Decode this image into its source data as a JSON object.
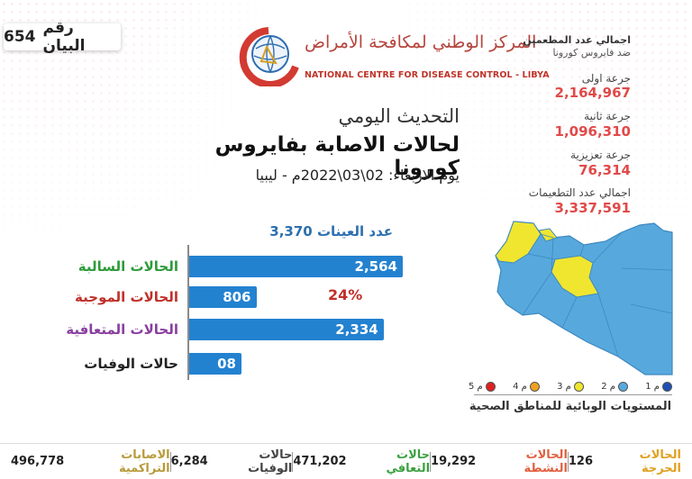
{
  "statement": {
    "label": "رقم البيان",
    "number": "654"
  },
  "logo": {
    "arabic": "المركز الوطني لمكافحة الأمراض",
    "english": "NATIONAL CENTRE FOR DISEASE CONTROL - LIBYA"
  },
  "header": {
    "line1": "التحديث اليومي",
    "line2": "لحالات الاصابة بفايروس كورونا",
    "line3": "يوم الاربعاء: 02\\03\\2022م - ليبيا"
  },
  "vaccination": {
    "title_line1": "اجمالي عدد المطعمين",
    "title_line2": "ضد فايروس كورونا",
    "dose1_label": "جرعة اولى",
    "dose1_value": "2,164,967",
    "dose2_label": "جرعة ثانية",
    "dose2_value": "1,096,310",
    "booster_label": "جرعة تعزيزية",
    "booster_value": "76,314",
    "total_label": "اجمالي عدد التطعيمات",
    "total_value": "3,337,591"
  },
  "chart_data": {
    "type": "bar",
    "title": "عدد العينات 3,370",
    "categories": [
      "الحالات السالبة",
      "الحالات الموجبة",
      "الحالات المتعافية",
      "حالات الوفيات"
    ],
    "values": [
      2564,
      806,
      2334,
      8
    ],
    "value_labels": [
      "2,564",
      "806",
      "2,334",
      "08"
    ],
    "annotation": "24%",
    "colors": {
      "bar": "#2382d0",
      "cat0": "#2e9b3a",
      "cat1": "#c0302a",
      "cat2": "#8a3fa0",
      "cat3": "#222222"
    }
  },
  "legend": {
    "title": "المستويات الوبائية للمناطق الصحية",
    "items": [
      {
        "label": "م 1",
        "color": "#1f4fb4"
      },
      {
        "label": "م 2",
        "color": "#57a9dd"
      },
      {
        "label": "م 3",
        "color": "#f0e630"
      },
      {
        "label": "م 4",
        "color": "#f0a020"
      },
      {
        "label": "م 5",
        "color": "#e02020"
      }
    ]
  },
  "footer": [
    {
      "label": "الحالات الحرجة",
      "value": "126",
      "color": "#e0a020"
    },
    {
      "label": "الحالات النشطة",
      "value": "19,292",
      "color": "#e06040"
    },
    {
      "label": "حالات التعافي",
      "value": "471,202",
      "color": "#3aa040"
    },
    {
      "label": "حالات الوفيات",
      "value": "6,284",
      "color": "#444444"
    },
    {
      "label": "الاصابات التراكمية",
      "value": "496,778",
      "color": "#b89a3a"
    }
  ]
}
